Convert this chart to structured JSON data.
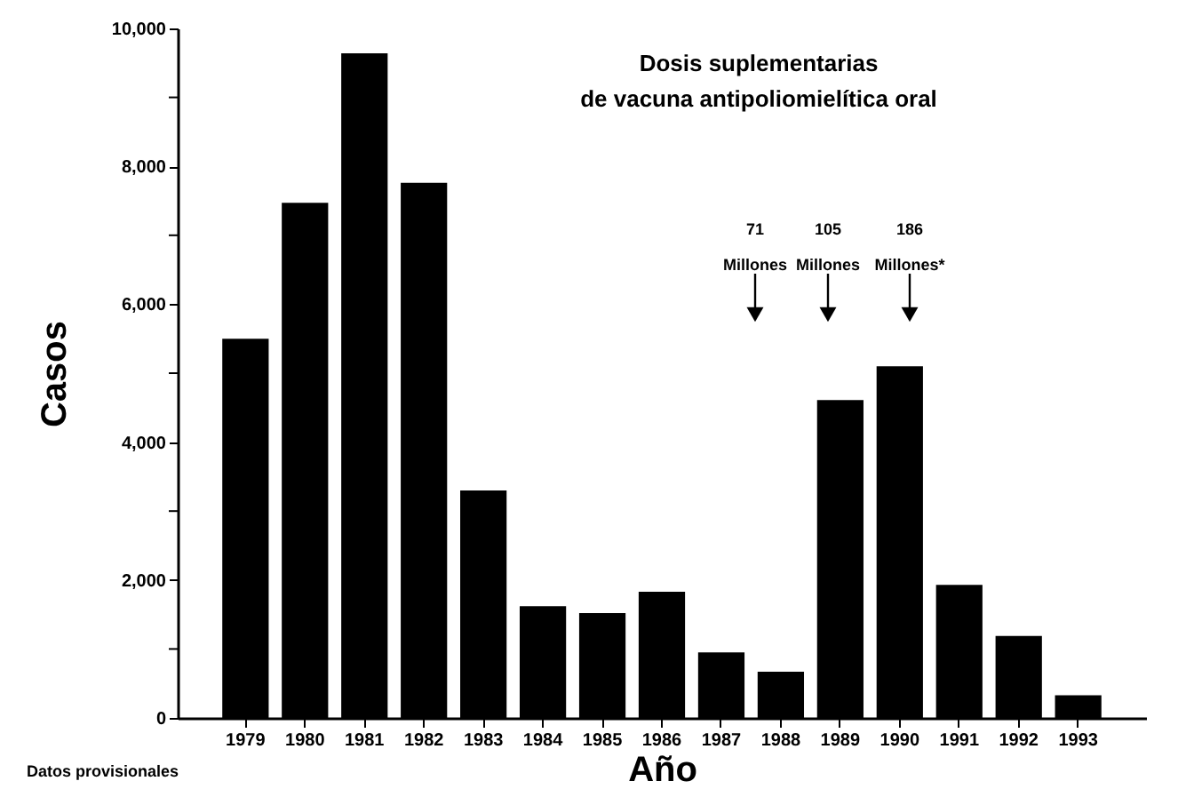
{
  "chart_data": {
    "type": "bar",
    "categories": [
      "1979",
      "1980",
      "1981",
      "1982",
      "1983",
      "1984",
      "1985",
      "1986",
      "1987",
      "1988",
      "1989",
      "1990",
      "1991",
      "1992",
      "1993"
    ],
    "values": [
      5500,
      7470,
      9640,
      7760,
      3300,
      1620,
      1520,
      1830,
      950,
      670,
      4610,
      5100,
      1930,
      1190,
      330
    ],
    "color": "#000000",
    "xlabel": "Año",
    "ylabel": "Casos",
    "ylim": [
      0,
      10000
    ],
    "yticks": [
      {
        "value": 0,
        "label": "0"
      },
      {
        "value": 1000,
        "label": null
      },
      {
        "value": 2000,
        "label": "2,000"
      },
      {
        "value": 3000,
        "label": null
      },
      {
        "value": 4000,
        "label": "4,000"
      },
      {
        "value": 5000,
        "label": null
      },
      {
        "value": 6000,
        "label": "6,000"
      },
      {
        "value": 7000,
        "label": null
      },
      {
        "value": 8000,
        "label": "8,000"
      },
      {
        "value": 9000,
        "label": null
      },
      {
        "value": 10000,
        "label": "10,000"
      }
    ],
    "annotations": [
      "Dosis suplementarias",
      "de vacuna antipoliomielítica oral",
      "71 Millones",
      "105 Millones",
      "186 Millones*",
      "Datos provisionales"
    ],
    "grid": false
  }
}
